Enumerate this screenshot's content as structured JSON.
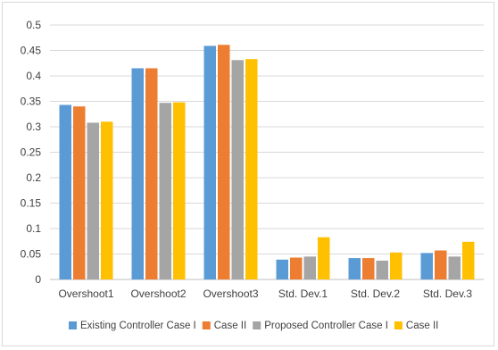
{
  "chart_data": {
    "type": "bar",
    "categories": [
      "Overshoot1",
      "Overshoot2",
      "Overshoot3",
      "Std. Dev.1",
      "Std. Dev.2",
      "Std. Dev.3"
    ],
    "series": [
      {
        "name": "Existing Controller Case I",
        "color": "#5b9bd5",
        "values": [
          0.343,
          0.415,
          0.459,
          0.039,
          0.042,
          0.052
        ]
      },
      {
        "name": "Case II",
        "color": "#ed7d31",
        "values": [
          0.34,
          0.415,
          0.461,
          0.043,
          0.042,
          0.057
        ]
      },
      {
        "name": "Proposed Controller Case I",
        "color": "#a5a5a5",
        "values": [
          0.308,
          0.347,
          0.431,
          0.045,
          0.037,
          0.045
        ]
      },
      {
        "name": "Case II",
        "color": "#ffc000",
        "values": [
          0.31,
          0.348,
          0.433,
          0.083,
          0.053,
          0.074
        ]
      }
    ],
    "yticks": [
      "0",
      "0.05",
      "0.1",
      "0.15",
      "0.2",
      "0.25",
      "0.3",
      "0.35",
      "0.4",
      "0.45",
      "0.5"
    ],
    "ylim": [
      0,
      0.5
    ],
    "grid": true,
    "legend": "bottom",
    "title": "",
    "xlabel": "",
    "ylabel": ""
  }
}
